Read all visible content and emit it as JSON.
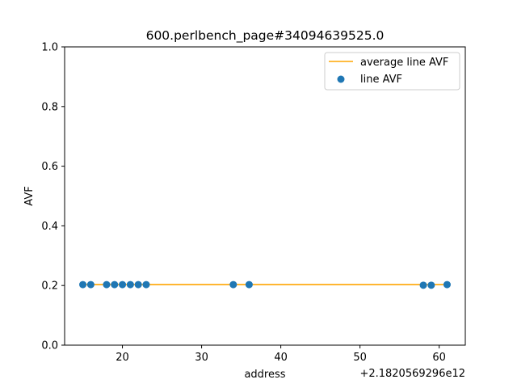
{
  "chart_data": {
    "type": "scatter",
    "title": "600.perlbench_page#34094639525.0",
    "xlabel": "address",
    "ylabel": "AVF",
    "x_offset_label": "+2.1820569296e12",
    "xlim": [
      12.7,
      63.3
    ],
    "ylim": [
      0.0,
      1.0
    ],
    "x_ticks": [
      20,
      30,
      40,
      50,
      60
    ],
    "x_tick_labels": [
      "20",
      "30",
      "40",
      "50",
      "60"
    ],
    "y_ticks": [
      0.0,
      0.2,
      0.4,
      0.6,
      0.8,
      1.0
    ],
    "y_tick_labels": [
      "0.0",
      "0.2",
      "0.4",
      "0.6",
      "0.8",
      "1.0"
    ],
    "grid": false,
    "legend_position": "top-right",
    "series": [
      {
        "name": "average line AVF",
        "kind": "line",
        "color": "#ffa500",
        "x": [
          15,
          61
        ],
        "y": [
          0.203,
          0.203
        ]
      },
      {
        "name": "line AVF",
        "kind": "scatter",
        "color": "#1f77b4",
        "x": [
          15,
          16,
          18,
          19,
          20,
          21,
          22,
          23,
          34,
          36,
          58,
          59,
          61
        ],
        "y": [
          0.203,
          0.203,
          0.203,
          0.203,
          0.203,
          0.203,
          0.203,
          0.203,
          0.203,
          0.203,
          0.201,
          0.201,
          0.203
        ]
      }
    ]
  }
}
